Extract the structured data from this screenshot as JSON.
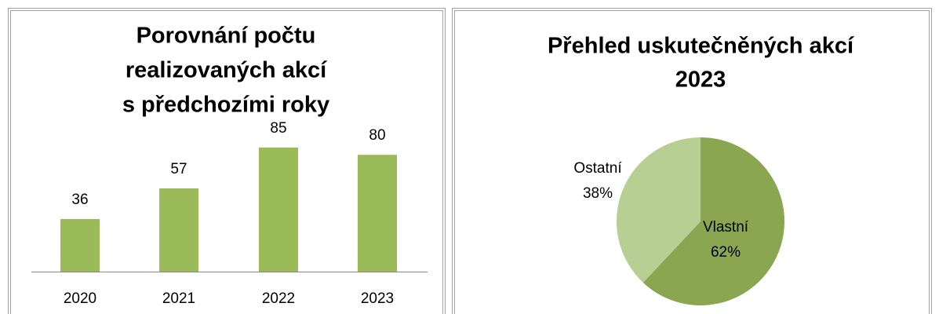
{
  "chart_data": [
    {
      "type": "bar",
      "title": [
        "Porovnání počtu",
        "realizovaných akcí",
        "s předchozími roky"
      ],
      "categories": [
        "2020",
        "2021",
        "2022",
        "2023"
      ],
      "values": [
        36,
        57,
        85,
        80
      ],
      "color": "#9bbb59"
    },
    {
      "type": "pie",
      "title": [
        "Přehled uskutečněných akcí",
        "2023"
      ],
      "categories": [
        "Vlastní",
        "Ostatní"
      ],
      "values": [
        62,
        38
      ],
      "value_labels": [
        "62%",
        "38%"
      ],
      "colors": [
        "#8ba650",
        "#b8cf94"
      ]
    }
  ]
}
